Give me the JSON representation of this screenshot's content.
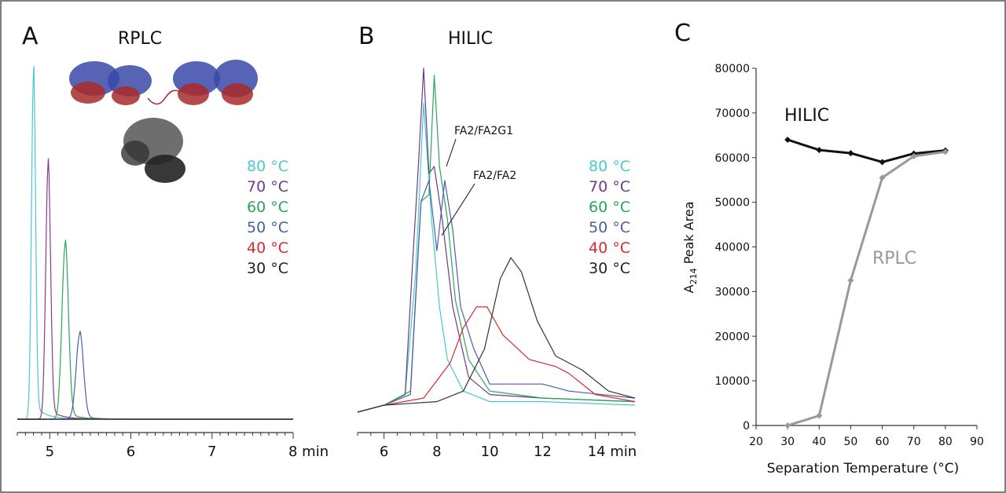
{
  "panel_labels": [
    "A",
    "B",
    "C"
  ],
  "legend_temps": [
    {
      "label": "80 °C",
      "color": "#4cc6d2"
    },
    {
      "label": "70 °C",
      "color": "#6a3a8a"
    },
    {
      "label": "60 °C",
      "color": "#2aa55a"
    },
    {
      "label": "50 °C",
      "color": "#4a5fa8"
    },
    {
      "label": "40 °C",
      "color": "#d42a34"
    },
    {
      "label": "30 °C",
      "color": "#222222"
    }
  ],
  "chart_data": [
    {
      "type": "line",
      "panel": "A",
      "title": "RPLC",
      "xlabel": "min",
      "ylabel": "",
      "xlim": [
        4.6,
        8.0
      ],
      "x_ticks": [
        "5",
        "6",
        "7",
        "8 min"
      ],
      "y_units": "relative absorbance (unlabeled)",
      "series": [
        {
          "name": "80 °C",
          "color": "#4cc6d2",
          "peak_x": 4.8,
          "peak_height": 0.97,
          "width": 0.025
        },
        {
          "name": "70 °C",
          "color": "#8a3a96",
          "peak_x": 4.98,
          "peak_height": 0.71,
          "width": 0.03
        },
        {
          "name": "60 °C",
          "color": "#2aa55a",
          "peak_x": 5.19,
          "peak_height": 0.49,
          "width": 0.04
        },
        {
          "name": "50 °C",
          "color": "#4a5fa8",
          "peak_x": 5.37,
          "peak_height": 0.24,
          "width": 0.045
        },
        {
          "name": "40 °C",
          "color": "#d42a34",
          "peak_x": 5.5,
          "peak_height": 0.0,
          "width": 0.05
        },
        {
          "name": "30 °C",
          "color": "#222222",
          "peak_x": 5.6,
          "peak_height": 0.0,
          "width": 0.05
        }
      ]
    },
    {
      "type": "line",
      "panel": "B",
      "title": "HILIC",
      "xlabel": "min",
      "ylabel": "",
      "xlim": [
        5.0,
        15.5
      ],
      "x_ticks": [
        "6",
        "8",
        "10",
        "12",
        "14 min"
      ],
      "annotations": [
        "FA2/FA2G1",
        "FA2/FA2"
      ],
      "series": [
        {
          "name": "80 °C",
          "color": "#4cc6d2",
          "x": [
            5.0,
            6.0,
            6.8,
            7.2,
            7.5,
            7.8,
            8.1,
            8.4,
            9.0,
            10.0,
            12.0,
            15.5
          ],
          "y": [
            0.0,
            0.02,
            0.05,
            0.4,
            0.88,
            0.55,
            0.3,
            0.15,
            0.06,
            0.03,
            0.03,
            0.02
          ]
        },
        {
          "name": "70 °C",
          "color": "#6a3a8a",
          "x": [
            5.0,
            6.0,
            6.8,
            7.1,
            7.3,
            7.5,
            7.7,
            7.9,
            8.2,
            8.6,
            9.2,
            10.0,
            12.0,
            15.5
          ],
          "y": [
            0.0,
            0.02,
            0.05,
            0.45,
            0.7,
            0.98,
            0.68,
            0.7,
            0.55,
            0.3,
            0.1,
            0.05,
            0.04,
            0.03
          ]
        },
        {
          "name": "60 °C",
          "color": "#2aa55a",
          "x": [
            5.0,
            6.0,
            7.0,
            7.4,
            7.7,
            7.9,
            8.1,
            8.4,
            8.7,
            9.2,
            10.0,
            12.0,
            15.5
          ],
          "y": [
            0.0,
            0.02,
            0.06,
            0.6,
            0.62,
            0.96,
            0.7,
            0.55,
            0.32,
            0.15,
            0.06,
            0.04,
            0.03
          ]
        },
        {
          "name": "50 °C",
          "color": "#4a5fa8",
          "x": [
            5.0,
            6.0,
            7.0,
            7.4,
            7.7,
            8.0,
            8.3,
            8.6,
            8.9,
            9.4,
            10.0,
            11.0,
            12.0,
            13.0,
            15.5
          ],
          "y": [
            0.0,
            0.02,
            0.05,
            0.6,
            0.66,
            0.46,
            0.66,
            0.52,
            0.3,
            0.18,
            0.08,
            0.08,
            0.08,
            0.06,
            0.04
          ]
        },
        {
          "name": "40 °C",
          "color": "#d42a34",
          "x": [
            5.0,
            6.0,
            7.5,
            8.5,
            9.0,
            9.5,
            9.9,
            10.5,
            11.5,
            12.5,
            13.0,
            14.0,
            15.5
          ],
          "y": [
            0.0,
            0.02,
            0.04,
            0.14,
            0.24,
            0.3,
            0.3,
            0.22,
            0.15,
            0.13,
            0.11,
            0.05,
            0.03
          ]
        },
        {
          "name": "30 °C",
          "color": "#333333",
          "x": [
            5.0,
            6.0,
            8.0,
            9.0,
            9.8,
            10.4,
            10.8,
            11.2,
            11.8,
            12.5,
            13.0,
            13.5,
            14.5,
            15.5
          ],
          "y": [
            0.0,
            0.02,
            0.03,
            0.06,
            0.18,
            0.38,
            0.44,
            0.4,
            0.26,
            0.16,
            0.14,
            0.12,
            0.06,
            0.04
          ]
        }
      ]
    },
    {
      "type": "line",
      "panel": "C",
      "title": "",
      "xlabel": "Separation Temperature (°C)",
      "ylabel": "A214 Peak Area",
      "ylabel_main": "A",
      "ylabel_sub": "214",
      "ylabel_rest": " Peak Area",
      "xlim": [
        20,
        90
      ],
      "ylim": [
        0,
        80000
      ],
      "x_ticks": [
        20,
        30,
        40,
        50,
        60,
        70,
        80,
        90
      ],
      "y_ticks": [
        0,
        10000,
        20000,
        30000,
        40000,
        50000,
        60000,
        70000,
        80000
      ],
      "series": [
        {
          "name": "HILIC",
          "color": "#111111",
          "x": [
            30,
            40,
            50,
            60,
            70,
            80
          ],
          "y": [
            64000,
            61700,
            61000,
            59000,
            60900,
            61600
          ]
        },
        {
          "name": "RPLC",
          "color": "#999999",
          "x": [
            30,
            40,
            50,
            60,
            70,
            80
          ],
          "y": [
            0,
            2200,
            32500,
            55500,
            60300,
            61300
          ]
        }
      ]
    }
  ]
}
